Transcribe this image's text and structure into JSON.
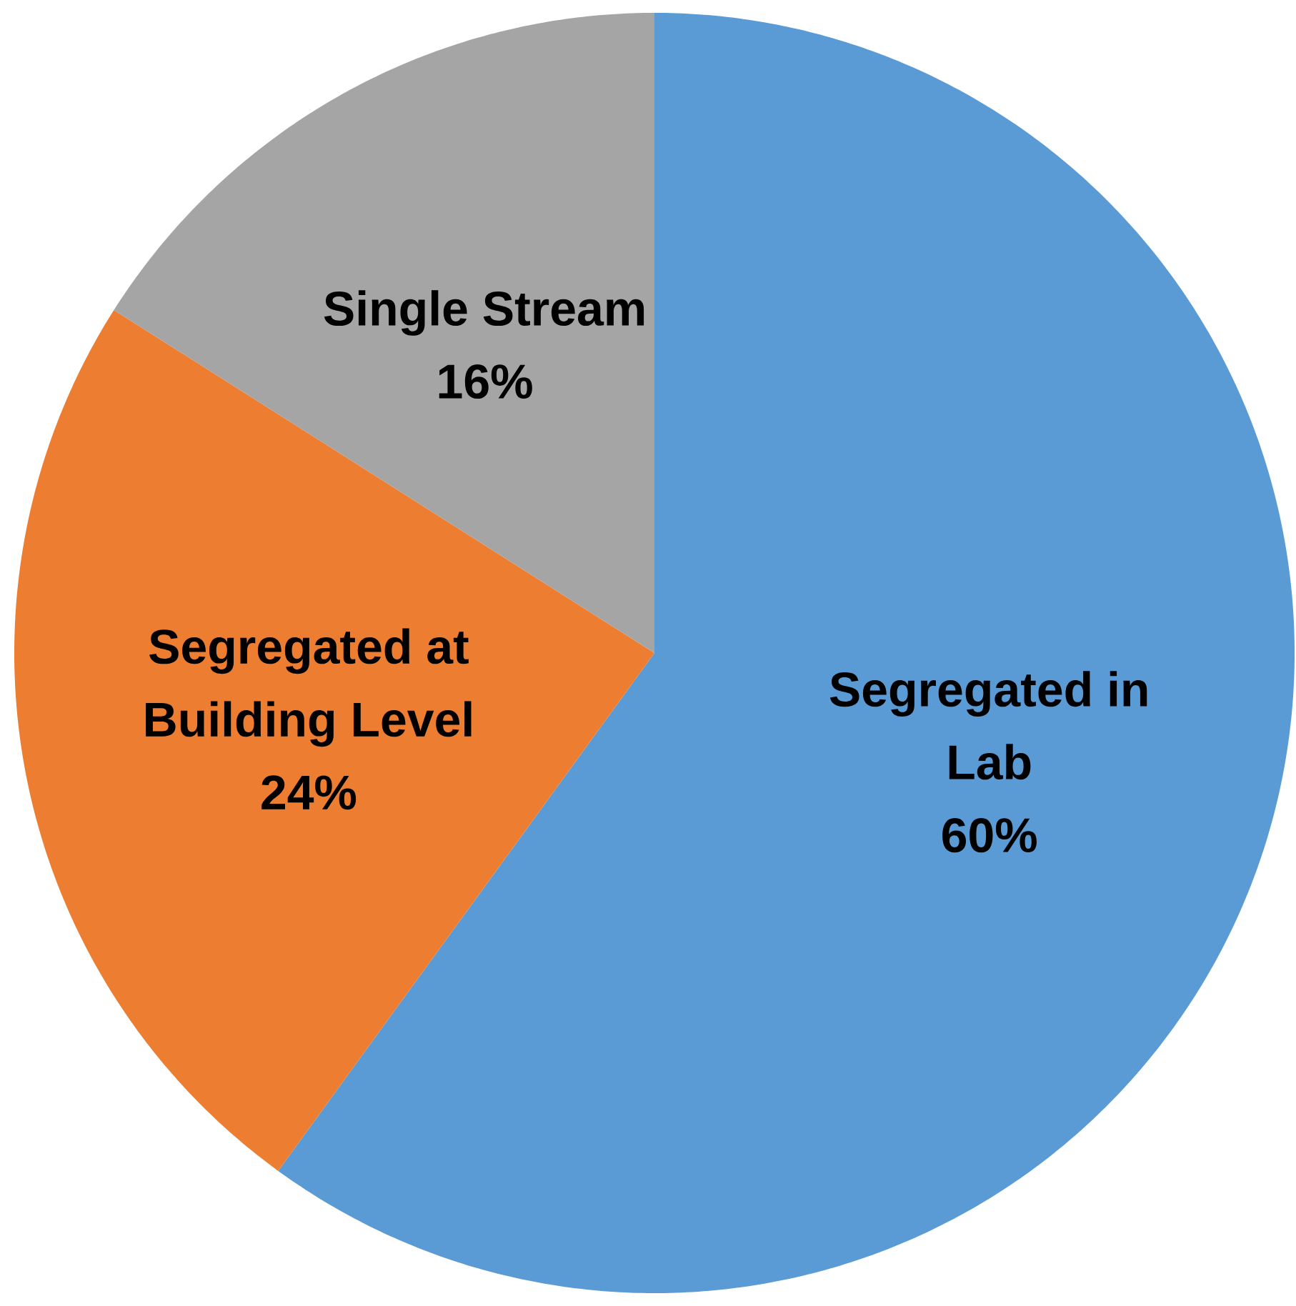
{
  "chart_data": {
    "type": "pie",
    "categories": [
      "Segregated in Lab",
      "Segregated at Building Level",
      "Single Stream"
    ],
    "values": [
      60,
      24,
      16
    ],
    "value_labels": [
      "60%",
      "24%",
      "16%"
    ],
    "colors": [
      "#5b9bd5",
      "#ed7d31",
      "#a5a5a5"
    ]
  }
}
